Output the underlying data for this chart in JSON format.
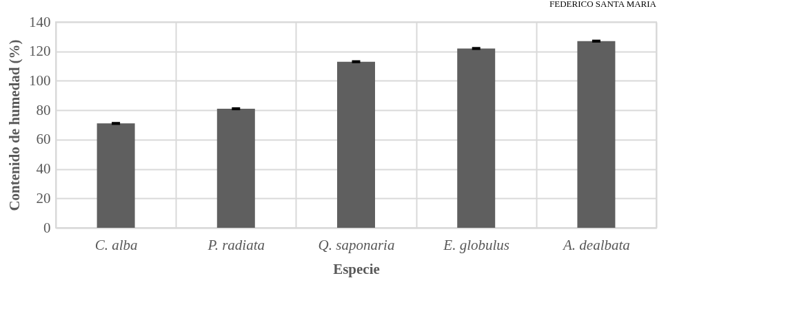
{
  "chart_data": {
    "type": "bar",
    "xlabel": "Especie",
    "ylabel": "Contenido de humedad  (%)",
    "categories": [
      "C. alba",
      "P. radiata",
      "Q. saponaria",
      "E. globulus",
      "A. dealbata"
    ],
    "values": [
      71,
      81,
      113,
      122,
      127
    ],
    "errors": [
      1,
      1,
      1,
      1,
      1
    ],
    "color": "#5f5f5f",
    "ylim": [
      0,
      140
    ],
    "yticks": [
      0,
      20,
      40,
      60,
      80,
      100,
      120,
      140
    ],
    "grid": true,
    "annotations": [
      "FEDERICO SANTA MARIA"
    ]
  }
}
